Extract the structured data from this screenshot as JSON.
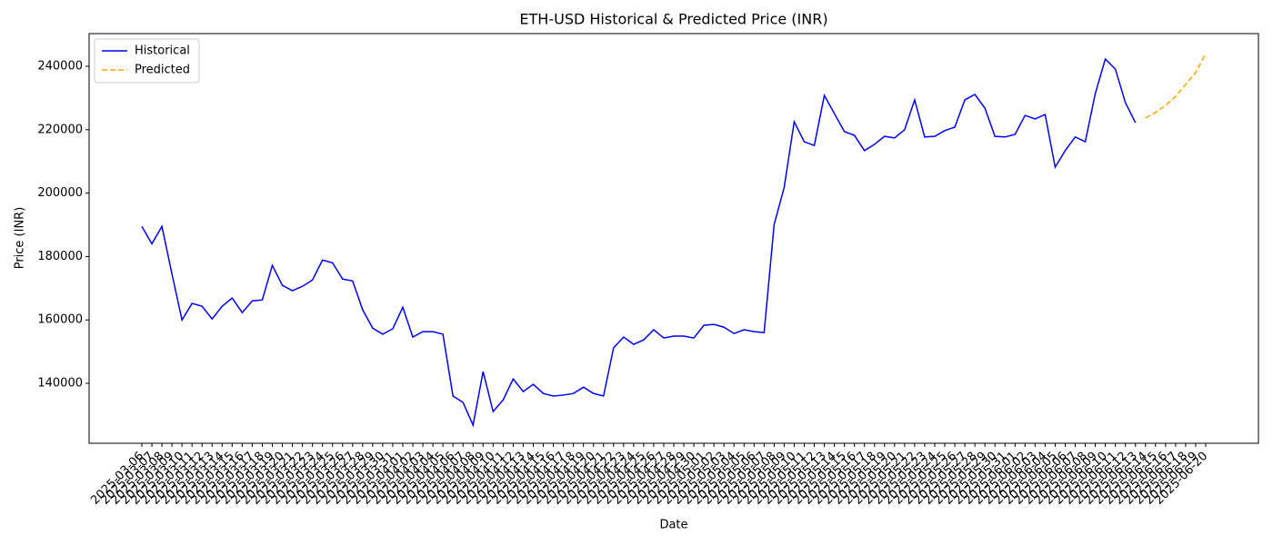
{
  "chart_data": {
    "type": "line",
    "title": "ETH-USD Historical & Predicted Price (INR)",
    "xlabel": "Date",
    "ylabel": "Price (INR)",
    "categories": [
      "2025-03-06",
      "2025-03-07",
      "2025-03-08",
      "2025-03-09",
      "2025-03-10",
      "2025-03-11",
      "2025-03-12",
      "2025-03-13",
      "2025-03-14",
      "2025-03-15",
      "2025-03-16",
      "2025-03-17",
      "2025-03-18",
      "2025-03-19",
      "2025-03-20",
      "2025-03-21",
      "2025-03-22",
      "2025-03-23",
      "2025-03-24",
      "2025-03-25",
      "2025-03-26",
      "2025-03-27",
      "2025-03-28",
      "2025-03-29",
      "2025-03-30",
      "2025-03-31",
      "2025-04-01",
      "2025-04-02",
      "2025-04-03",
      "2025-04-04",
      "2025-04-05",
      "2025-04-06",
      "2025-04-07",
      "2025-04-08",
      "2025-04-09",
      "2025-04-10",
      "2025-04-11",
      "2025-04-12",
      "2025-04-13",
      "2025-04-14",
      "2025-04-15",
      "2025-04-16",
      "2025-04-17",
      "2025-04-18",
      "2025-04-19",
      "2025-04-20",
      "2025-04-21",
      "2025-04-22",
      "2025-04-23",
      "2025-04-24",
      "2025-04-25",
      "2025-04-26",
      "2025-04-27",
      "2025-04-28",
      "2025-04-29",
      "2025-04-30",
      "2025-05-01",
      "2025-05-02",
      "2025-05-03",
      "2025-05-04",
      "2025-05-05",
      "2025-05-06",
      "2025-05-07",
      "2025-05-08",
      "2025-05-09",
      "2025-05-10",
      "2025-05-11",
      "2025-05-12",
      "2025-05-13",
      "2025-05-14",
      "2025-05-15",
      "2025-05-16",
      "2025-05-17",
      "2025-05-18",
      "2025-05-19",
      "2025-05-20",
      "2025-05-21",
      "2025-05-22",
      "2025-05-23",
      "2025-05-24",
      "2025-05-25",
      "2025-05-26",
      "2025-05-27",
      "2025-05-28",
      "2025-05-29",
      "2025-05-30",
      "2025-05-31",
      "2025-06-01",
      "2025-06-02",
      "2025-06-03",
      "2025-06-04",
      "2025-06-05",
      "2025-06-06",
      "2025-06-07",
      "2025-06-08",
      "2025-06-09",
      "2025-06-10",
      "2025-06-11",
      "2025-06-12",
      "2025-06-13",
      "2025-06-14",
      "2025-06-15",
      "2025-06-16",
      "2025-06-17",
      "2025-06-18",
      "2025-06-19",
      "2025-06-20"
    ],
    "series": [
      {
        "name": "Historical",
        "color": "#0000ff",
        "dash": false,
        "values": [
          189500,
          184000,
          189500,
          174500,
          160000,
          165200,
          164300,
          160300,
          164300,
          166900,
          162300,
          166000,
          166300,
          177200,
          170900,
          169200,
          170600,
          172600,
          178900,
          178000,
          172900,
          172300,
          163200,
          157400,
          155500,
          157200,
          164000,
          154600,
          156300,
          156300,
          155500,
          136000,
          134000,
          126800,
          143700,
          131100,
          134800,
          141400,
          137400,
          139700,
          136800,
          136000,
          136300,
          136800,
          138800,
          136800,
          136000,
          151200,
          154600,
          152300,
          153700,
          156900,
          154300,
          154900,
          154900,
          154300,
          158300,
          158600,
          157700,
          155700,
          156900,
          156300,
          156000,
          190100,
          201800,
          222500,
          216200,
          215000,
          230800,
          225100,
          219400,
          218200,
          213400,
          215400,
          217900,
          217400,
          220000,
          229400,
          217700,
          217900,
          219700,
          220800,
          229400,
          231100,
          226800,
          217900,
          217700,
          218500,
          224500,
          223400,
          224800,
          208200,
          213400,
          217700,
          216200,
          231400,
          242300,
          239100,
          228500,
          222200,
          null,
          null,
          null,
          null,
          null,
          null,
          null
        ]
      },
      {
        "name": "Predicted",
        "color": "#ffa500",
        "dash": true,
        "values": [
          null,
          null,
          null,
          null,
          null,
          null,
          null,
          null,
          null,
          null,
          null,
          null,
          null,
          null,
          null,
          null,
          null,
          null,
          null,
          null,
          null,
          null,
          null,
          null,
          null,
          null,
          null,
          null,
          null,
          null,
          null,
          null,
          null,
          null,
          null,
          null,
          null,
          null,
          null,
          null,
          null,
          null,
          null,
          null,
          null,
          null,
          null,
          null,
          null,
          null,
          null,
          null,
          null,
          null,
          null,
          null,
          null,
          null,
          null,
          null,
          null,
          null,
          null,
          null,
          null,
          null,
          null,
          null,
          null,
          null,
          null,
          null,
          null,
          null,
          null,
          null,
          null,
          null,
          null,
          null,
          null,
          null,
          null,
          null,
          null,
          null,
          null,
          null,
          null,
          null,
          null,
          null,
          null,
          null,
          null,
          null,
          null,
          null,
          null,
          null,
          223700,
          225400,
          227700,
          230500,
          234300,
          238000,
          244000
        ]
      }
    ],
    "ylim": [
      121100,
      250300
    ],
    "yticks": [
      140000,
      160000,
      180000,
      200000,
      220000,
      240000
    ],
    "legend": "upper left"
  }
}
